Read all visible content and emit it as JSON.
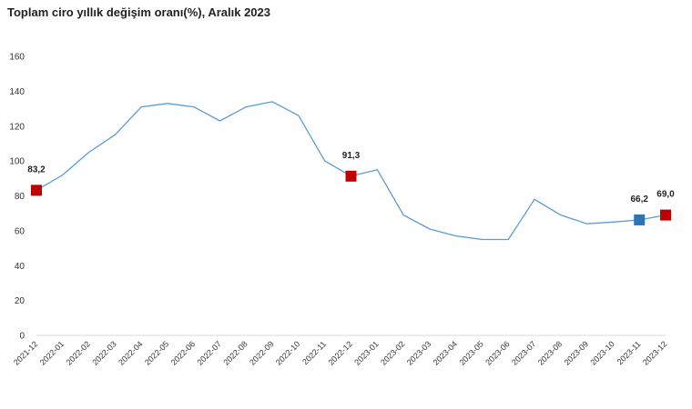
{
  "chart_data": {
    "type": "line",
    "title": "Toplam ciro yıllık değişim oranı(%), Aralık 2023",
    "xlabel": "",
    "ylabel": "",
    "ylim": [
      0,
      160
    ],
    "yticks": [
      0,
      20,
      40,
      60,
      80,
      100,
      120,
      140,
      160
    ],
    "grid": false,
    "categories": [
      "2021-12",
      "2022-01",
      "2022-02",
      "2022-03",
      "2022-04",
      "2022-05",
      "2022-06",
      "2022-07",
      "2022-08",
      "2022-09",
      "2022-10",
      "2022-11",
      "2022-12",
      "2023-01",
      "2023-02",
      "2023-03",
      "2023-04",
      "2023-05",
      "2023-06",
      "2023-07",
      "2023-08",
      "2023-09",
      "2023-10",
      "2023-11",
      "2023-12"
    ],
    "series": [
      {
        "values": [
          83.2,
          92,
          105,
          115,
          131,
          133,
          131,
          123,
          131,
          134,
          126,
          100,
          91.3,
          95,
          69,
          61,
          57,
          55,
          55,
          78,
          69,
          64,
          65,
          66.2,
          69.0
        ],
        "color": "#5b9bd5"
      }
    ],
    "markers": [
      {
        "index": 0,
        "label": "83,2",
        "color": "#c00000"
      },
      {
        "index": 12,
        "label": "91,3",
        "color": "#c00000"
      },
      {
        "index": 23,
        "label": "66,2",
        "color": "#2e75b6"
      },
      {
        "index": 24,
        "label": "69,0",
        "color": "#c00000"
      }
    ]
  }
}
